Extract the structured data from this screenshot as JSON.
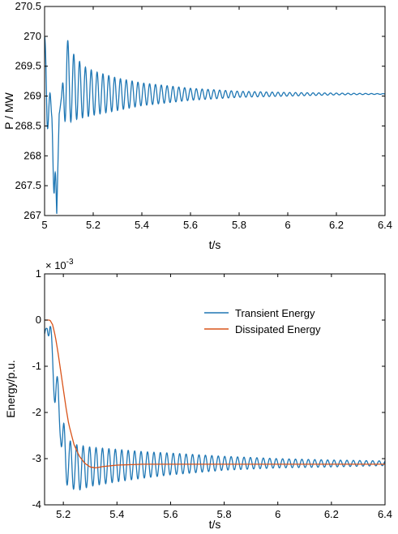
{
  "chart_data": [
    {
      "type": "line",
      "title": "",
      "xlabel": "t/s",
      "ylabel": "P / MW",
      "xlim": [
        5,
        6.4
      ],
      "ylim": [
        267,
        270.5
      ],
      "xticks": [
        "5",
        "5.2",
        "5.4",
        "5.6",
        "5.8",
        "6",
        "6.2",
        "6.4"
      ],
      "yticks": [
        "267",
        "267.5",
        "268",
        "268.5",
        "269",
        "269.5",
        "270",
        "270.5"
      ],
      "grid": false,
      "series": [
        {
          "color": "#1f77b4",
          "x": [
            5.0,
            5.01,
            5.02,
            5.03,
            5.04,
            5.05,
            5.06,
            5.07,
            5.08,
            5.09,
            5.1,
            5.12,
            5.14,
            5.16,
            5.2,
            5.3,
            5.4,
            5.6,
            5.8,
            6.0,
            6.2,
            6.4
          ],
          "envelope_upper": [
            270.0,
            269.8,
            269.2,
            268.7,
            268.6,
            267.0,
            268.8,
            269.0,
            269.6,
            270.1,
            269.8,
            269.7,
            269.6,
            269.5,
            269.42,
            269.3,
            269.22,
            269.13,
            269.08,
            269.06,
            269.05,
            269.04
          ],
          "envelope_lower": [
            269.6,
            268.5,
            268.3,
            268.6,
            267.0,
            267.0,
            268.7,
            268.9,
            268.6,
            268.55,
            268.55,
            268.6,
            268.62,
            268.64,
            268.68,
            268.76,
            268.84,
            268.93,
            268.98,
            269.0,
            269.02,
            269.03
          ],
          "oscillation_period_s": 0.024
        }
      ]
    },
    {
      "type": "line",
      "title": "",
      "xlabel": "t/s",
      "ylabel": "Energy/p.u.",
      "exponent_label": "× 10",
      "exponent_power": "-3",
      "xlim": [
        5.13,
        6.4
      ],
      "ylim": [
        -4,
        1
      ],
      "xticks": [
        "5.2",
        "5.4",
        "5.6",
        "5.8",
        "6",
        "6.2",
        "6.4"
      ],
      "yticks": [
        "-4",
        "-3",
        "-2",
        "-1",
        "0",
        "1"
      ],
      "grid": false,
      "legend_position": "top-right",
      "series": [
        {
          "name": "Transient Energy",
          "color": "#1f77b4",
          "x": [
            5.13,
            5.14,
            5.15,
            5.16,
            5.17,
            5.18,
            5.19,
            5.2,
            5.22,
            5.25,
            5.3,
            5.4,
            5.5,
            5.6,
            5.8,
            6.0,
            6.2,
            6.4
          ],
          "envelope_upper": [
            -0.3,
            0.0,
            0.0,
            -0.5,
            -1.0,
            -1.3,
            -1.9,
            -2.2,
            -2.6,
            -2.7,
            -2.75,
            -2.8,
            -2.85,
            -2.88,
            -2.95,
            -3.0,
            -3.03,
            -3.05
          ],
          "envelope_lower": [
            -0.3,
            -0.2,
            -0.6,
            -1.2,
            -2.0,
            -2.2,
            -2.6,
            -3.5,
            -3.6,
            -3.7,
            -3.6,
            -3.5,
            -3.42,
            -3.35,
            -3.25,
            -3.2,
            -3.18,
            -3.15
          ],
          "oscillation_period_s": 0.024
        },
        {
          "name": "Dissipated Energy",
          "color": "#d95319",
          "x": [
            5.13,
            5.15,
            5.16,
            5.17,
            5.18,
            5.19,
            5.2,
            5.21,
            5.22,
            5.24,
            5.26,
            5.28,
            5.3,
            5.32,
            5.35,
            5.4,
            5.5,
            5.6,
            5.8,
            6.0,
            6.2,
            6.4
          ],
          "y": [
            0.0,
            0.0,
            -0.1,
            -0.35,
            -0.7,
            -1.1,
            -1.5,
            -1.9,
            -2.25,
            -2.7,
            -2.95,
            -3.1,
            -3.18,
            -3.2,
            -3.17,
            -3.14,
            -3.12,
            -3.12,
            -3.12,
            -3.12,
            -3.12,
            -3.12
          ]
        }
      ]
    }
  ]
}
